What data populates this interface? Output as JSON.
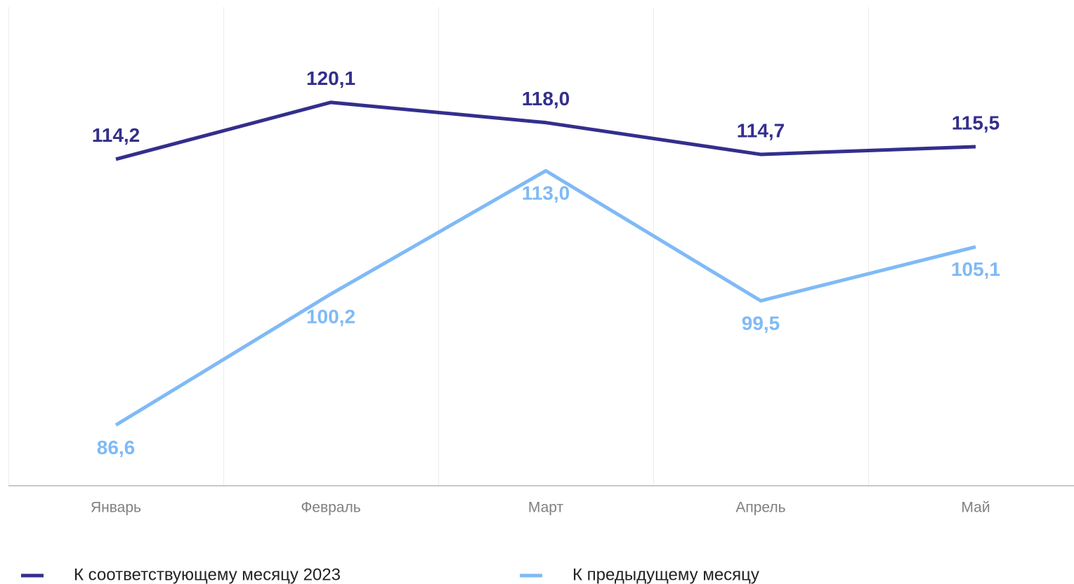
{
  "chart_data": {
    "type": "line",
    "categories": [
      "Январь",
      "Февраль",
      "Март",
      "Апрель",
      "Май"
    ],
    "series": [
      {
        "name": "К соответствующему месяцу 2023",
        "color": "#332f8c",
        "label_position": "above",
        "values": [
          114.2,
          120.1,
          118.0,
          114.7,
          115.5
        ],
        "value_labels": [
          "114,2",
          "120,1",
          "118,0",
          "114,7",
          "115,5"
        ]
      },
      {
        "name": "К предыдущему месяцу",
        "color": "#7fbaf6",
        "label_position": "below",
        "values": [
          86.6,
          100.2,
          113.0,
          99.5,
          105.1
        ],
        "value_labels": [
          "86,6",
          "100,2",
          "113,0",
          "99,5",
          "105,1"
        ]
      }
    ],
    "ylim": [
      80.3,
      130
    ]
  }
}
